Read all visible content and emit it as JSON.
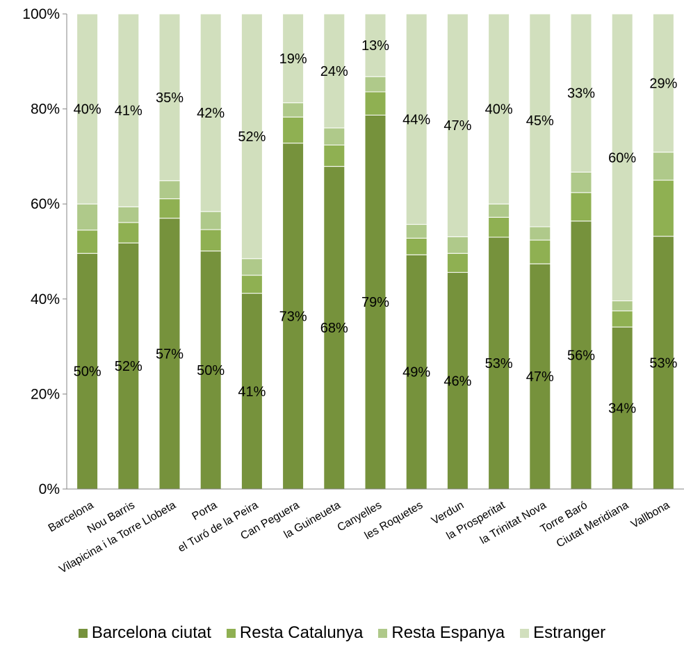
{
  "chart_data": {
    "type": "bar",
    "stacked": true,
    "categories": [
      "Barcelona",
      "Nou Barris",
      "Vilapicina i la Torre Llobeta",
      "Porta",
      "el Turó de la Peira",
      "Can Peguera",
      "la Guineueta",
      "Canyelles",
      "les Roquetes",
      "Verdun",
      "la Prosperitat",
      "la Trinitat Nova",
      "Torre Baró",
      "Ciutat Meridiana",
      "Vallbona"
    ],
    "series": [
      {
        "name": "Barcelona ciutat",
        "color": "#76923c",
        "values": [
          49.6,
          51.8,
          57.0,
          50.1,
          41.2,
          72.8,
          67.9,
          78.7,
          49.3,
          45.6,
          53.0,
          47.4,
          56.4,
          34.1,
          53.2
        ],
        "labels": [
          "50%",
          "52%",
          "57%",
          "50%",
          "41%",
          "73%",
          "68%",
          "79%",
          "49%",
          "46%",
          "53%",
          "47%",
          "56%",
          "34%",
          "53%"
        ],
        "show_labels": true
      },
      {
        "name": "Resta Catalunya",
        "color": "#8fb052",
        "values": [
          4.9,
          4.3,
          4.1,
          4.5,
          3.8,
          5.5,
          4.5,
          4.9,
          3.5,
          4.0,
          4.2,
          5.0,
          6.0,
          3.4,
          11.8
        ],
        "show_labels": false
      },
      {
        "name": "Resta Espanya",
        "color": "#afc98a",
        "values": [
          5.5,
          3.3,
          3.8,
          3.8,
          3.5,
          3.0,
          3.6,
          3.2,
          2.9,
          3.5,
          2.8,
          2.8,
          4.3,
          2.1,
          5.9
        ],
        "show_labels": false
      },
      {
        "name": "Estranger",
        "color": "#d1dfbd",
        "values": [
          40.0,
          40.6,
          35.1,
          41.6,
          51.5,
          18.7,
          24.0,
          13.2,
          44.3,
          46.9,
          40.0,
          44.8,
          33.3,
          60.4,
          29.1
        ],
        "labels": [
          "40%",
          "41%",
          "35%",
          "42%",
          "52%",
          "19%",
          "24%",
          "13%",
          "44%",
          "47%",
          "40%",
          "45%",
          "33%",
          "60%",
          "29%"
        ],
        "show_labels": true
      }
    ],
    "ylim": [
      0,
      100
    ],
    "yticks": [
      "0%",
      "20%",
      "40%",
      "60%",
      "80%",
      "100%"
    ],
    "xlabel": "",
    "ylabel": "",
    "title": "",
    "legend_position": "bottom"
  }
}
